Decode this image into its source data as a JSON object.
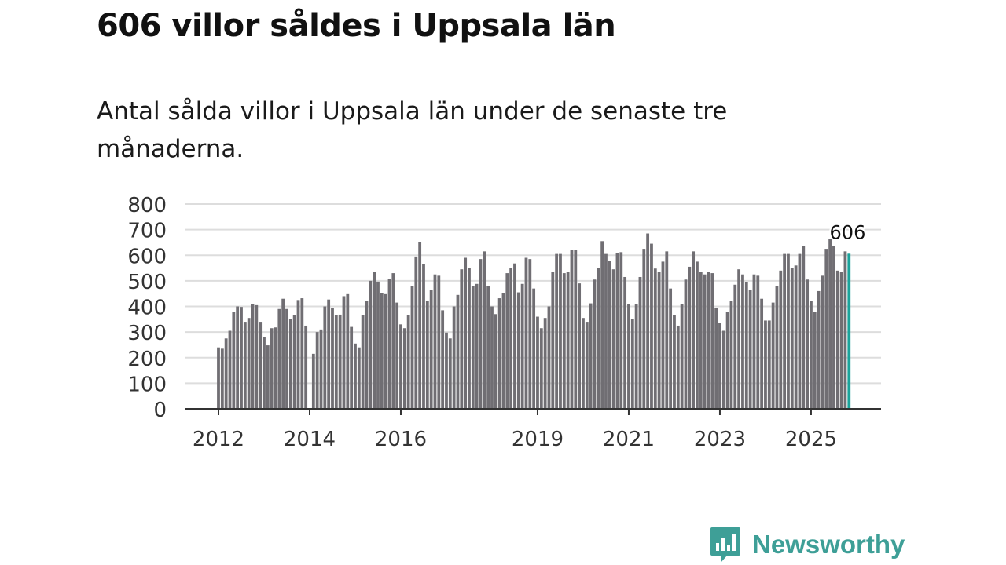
{
  "title": "606 villor såldes i Uppsala län",
  "subtitle": "Antal sålda villor i Uppsala län under de senaste tre månaderna.",
  "brand": "Newsworthy",
  "colors": {
    "bar": "#706e73",
    "highlight": "#1ba39b",
    "grid": "#dddddd",
    "brand": "#3e9f97"
  },
  "chart_data": {
    "type": "bar",
    "title": "Antal sålda villor i Uppsala län under de senaste tre månaderna.",
    "xlabel": "",
    "ylabel": "",
    "ylim": [
      0,
      800
    ],
    "yticks": [
      0,
      100,
      200,
      300,
      400,
      500,
      600,
      700,
      800
    ],
    "xticks": [
      {
        "label": "2012",
        "index": 0
      },
      {
        "label": "2014",
        "index": 24
      },
      {
        "label": "2016",
        "index": 48
      },
      {
        "label": "2019",
        "index": 84
      },
      {
        "label": "2021",
        "index": 108
      },
      {
        "label": "2023",
        "index": 132
      },
      {
        "label": "2025",
        "index": 156
      }
    ],
    "start": "2012-01",
    "frequency": "monthly",
    "grid": true,
    "annotation": {
      "label": "606",
      "index": 165
    },
    "values": [
      240,
      235,
      275,
      305,
      380,
      400,
      398,
      340,
      355,
      410,
      405,
      340,
      280,
      248,
      315,
      318,
      390,
      430,
      390,
      350,
      365,
      425,
      432,
      325,
      null,
      215,
      300,
      310,
      400,
      427,
      395,
      365,
      368,
      440,
      448,
      320,
      255,
      240,
      365,
      420,
      500,
      535,
      497,
      452,
      448,
      507,
      530,
      415,
      330,
      315,
      365,
      480,
      595,
      650,
      565,
      420,
      465,
      525,
      520,
      385,
      298,
      275,
      400,
      445,
      545,
      590,
      550,
      480,
      488,
      585,
      615,
      480,
      400,
      370,
      432,
      452,
      530,
      550,
      568,
      455,
      488,
      590,
      585,
      470,
      360,
      315,
      355,
      400,
      535,
      605,
      605,
      530,
      535,
      620,
      622,
      490,
      355,
      340,
      412,
      505,
      550,
      655,
      605,
      578,
      545,
      610,
      612,
      515,
      410,
      352,
      410,
      515,
      625,
      685,
      645,
      548,
      535,
      575,
      615,
      470,
      365,
      325,
      410,
      505,
      555,
      615,
      575,
      535,
      525,
      535,
      530,
      395,
      335,
      305,
      380,
      420,
      485,
      545,
      525,
      495,
      465,
      525,
      520,
      430,
      345,
      345,
      415,
      480,
      540,
      605,
      605,
      550,
      560,
      605,
      635,
      505,
      420,
      380,
      460,
      520,
      625,
      665,
      635,
      540,
      535,
      615,
      606
    ]
  }
}
